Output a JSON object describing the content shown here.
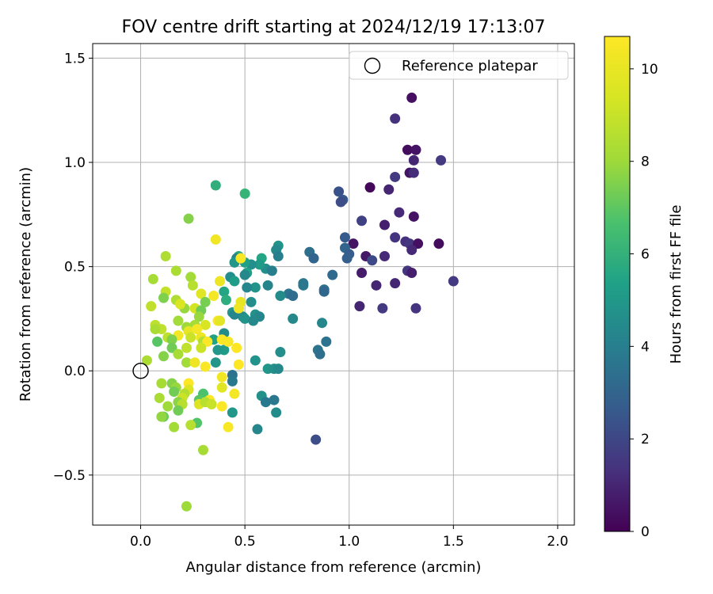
{
  "chart_data": {
    "type": "scatter",
    "title": "FOV centre drift starting at 2024/12/19 17:13:07",
    "xlabel": "Angular distance from reference (arcmin)",
    "ylabel": "Rotation from reference (arcmin)",
    "xlim": [
      -0.23,
      2.08
    ],
    "ylim": [
      -0.74,
      1.57
    ],
    "xticks": [
      0.0,
      0.5,
      1.0,
      1.5,
      2.0
    ],
    "yticks": [
      -0.5,
      0.0,
      0.5,
      1.0,
      1.5
    ],
    "xtick_labels": [
      "0.0",
      "0.5",
      "1.0",
      "1.5",
      "2.0"
    ],
    "ytick_labels": [
      "−0.5",
      "0.0",
      "0.5",
      "1.0",
      "1.5"
    ],
    "grid": true,
    "legend": {
      "position": "top-right",
      "entries": [
        "Reference platepar"
      ]
    },
    "reference_point": {
      "x": 0.0,
      "y": 0.0
    },
    "colorbar": {
      "label": "Hours from first FF file",
      "range": [
        0,
        10.7
      ],
      "ticks": [
        0,
        2,
        4,
        6,
        8,
        10
      ],
      "tick_labels": [
        "0",
        "2",
        "4",
        "6",
        "8",
        "10"
      ],
      "colormap": "viridis"
    },
    "points": [
      {
        "x": 1.3,
        "y": 1.31,
        "h": 0.4
      },
      {
        "x": 1.22,
        "y": 1.21,
        "h": 1.3
      },
      {
        "x": 1.28,
        "y": 1.06,
        "h": 0.3
      },
      {
        "x": 1.32,
        "y": 1.06,
        "h": 0.5
      },
      {
        "x": 1.31,
        "y": 1.01,
        "h": 1.0
      },
      {
        "x": 1.44,
        "y": 1.01,
        "h": 1.6
      },
      {
        "x": 1.29,
        "y": 0.95,
        "h": 0.5
      },
      {
        "x": 1.31,
        "y": 0.95,
        "h": 1.2
      },
      {
        "x": 1.22,
        "y": 0.93,
        "h": 1.6
      },
      {
        "x": 1.1,
        "y": 0.88,
        "h": 0.2
      },
      {
        "x": 1.19,
        "y": 0.87,
        "h": 1.0
      },
      {
        "x": 0.95,
        "y": 0.86,
        "h": 2.4
      },
      {
        "x": 0.97,
        "y": 0.82,
        "h": 2.5
      },
      {
        "x": 0.96,
        "y": 0.81,
        "h": 2.2
      },
      {
        "x": 1.24,
        "y": 0.76,
        "h": 1.1
      },
      {
        "x": 1.31,
        "y": 0.74,
        "h": 0.5
      },
      {
        "x": 1.06,
        "y": 0.72,
        "h": 1.8
      },
      {
        "x": 1.17,
        "y": 0.7,
        "h": 0.8
      },
      {
        "x": 1.22,
        "y": 0.64,
        "h": 1.4
      },
      {
        "x": 0.98,
        "y": 0.64,
        "h": 2.6
      },
      {
        "x": 1.27,
        "y": 0.62,
        "h": 1.3
      },
      {
        "x": 1.02,
        "y": 0.61,
        "h": 0.5
      },
      {
        "x": 1.29,
        "y": 0.61,
        "h": 1.5
      },
      {
        "x": 1.33,
        "y": 0.61,
        "h": 0.4
      },
      {
        "x": 1.43,
        "y": 0.61,
        "h": 0.3
      },
      {
        "x": 0.98,
        "y": 0.59,
        "h": 3.0
      },
      {
        "x": 1.3,
        "y": 0.58,
        "h": 1.1
      },
      {
        "x": 0.81,
        "y": 0.57,
        "h": 3.4
      },
      {
        "x": 1.0,
        "y": 0.56,
        "h": 2.7
      },
      {
        "x": 1.08,
        "y": 0.55,
        "h": 0.6
      },
      {
        "x": 1.17,
        "y": 0.55,
        "h": 1.1
      },
      {
        "x": 0.83,
        "y": 0.54,
        "h": 3.0
      },
      {
        "x": 0.99,
        "y": 0.54,
        "h": 2.8
      },
      {
        "x": 1.11,
        "y": 0.53,
        "h": 2.1
      },
      {
        "x": 1.28,
        "y": 0.48,
        "h": 1.5
      },
      {
        "x": 1.06,
        "y": 0.47,
        "h": 0.7
      },
      {
        "x": 1.3,
        "y": 0.47,
        "h": 0.8
      },
      {
        "x": 0.92,
        "y": 0.46,
        "h": 3.2
      },
      {
        "x": 1.5,
        "y": 0.43,
        "h": 1.6
      },
      {
        "x": 1.22,
        "y": 0.42,
        "h": 1.0
      },
      {
        "x": 1.13,
        "y": 0.41,
        "h": 1.0
      },
      {
        "x": 0.88,
        "y": 0.39,
        "h": 3.4
      },
      {
        "x": 0.88,
        "y": 0.38,
        "h": 3.1
      },
      {
        "x": 1.05,
        "y": 0.31,
        "h": 1.0
      },
      {
        "x": 1.16,
        "y": 0.3,
        "h": 1.6
      },
      {
        "x": 1.32,
        "y": 0.3,
        "h": 1.4
      },
      {
        "x": 0.85,
        "y": 0.1,
        "h": 3.6
      },
      {
        "x": 0.89,
        "y": 0.14,
        "h": 3.5
      },
      {
        "x": 0.86,
        "y": 0.08,
        "h": 3.4
      },
      {
        "x": 0.84,
        "y": -0.33,
        "h": 2.2
      },
      {
        "x": 0.87,
        "y": 0.23,
        "h": 4.3
      },
      {
        "x": 0.73,
        "y": 0.25,
        "h": 4.4
      },
      {
        "x": 0.78,
        "y": 0.41,
        "h": 3.8
      },
      {
        "x": 0.78,
        "y": 0.42,
        "h": 3.7
      },
      {
        "x": 0.71,
        "y": 0.37,
        "h": 3.6
      },
      {
        "x": 0.73,
        "y": 0.36,
        "h": 3.3
      },
      {
        "x": 0.67,
        "y": 0.36,
        "h": 4.5
      },
      {
        "x": 0.61,
        "y": 0.41,
        "h": 4.2
      },
      {
        "x": 0.6,
        "y": 0.49,
        "h": 4.6
      },
      {
        "x": 0.63,
        "y": 0.48,
        "h": 4.0
      },
      {
        "x": 0.66,
        "y": 0.6,
        "h": 4.8
      },
      {
        "x": 0.65,
        "y": 0.58,
        "h": 4.4
      },
      {
        "x": 0.66,
        "y": 0.55,
        "h": 4.0
      },
      {
        "x": 0.58,
        "y": 0.54,
        "h": 5.5
      },
      {
        "x": 0.57,
        "y": 0.51,
        "h": 5.1
      },
      {
        "x": 0.53,
        "y": 0.51,
        "h": 4.6
      },
      {
        "x": 0.5,
        "y": 0.52,
        "h": 5.3
      },
      {
        "x": 0.47,
        "y": 0.55,
        "h": 5.6
      },
      {
        "x": 0.46,
        "y": 0.54,
        "h": 4.2
      },
      {
        "x": 0.45,
        "y": 0.52,
        "h": 4.9
      },
      {
        "x": 0.51,
        "y": 0.47,
        "h": 5.4
      },
      {
        "x": 0.5,
        "y": 0.46,
        "h": 4.4
      },
      {
        "x": 0.43,
        "y": 0.45,
        "h": 4.6
      },
      {
        "x": 0.45,
        "y": 0.43,
        "h": 5.2
      },
      {
        "x": 0.55,
        "y": 0.4,
        "h": 4.8
      },
      {
        "x": 0.51,
        "y": 0.4,
        "h": 4.3
      },
      {
        "x": 0.4,
        "y": 0.38,
        "h": 5.5
      },
      {
        "x": 0.41,
        "y": 0.34,
        "h": 5.8
      },
      {
        "x": 0.53,
        "y": 0.33,
        "h": 4.6
      },
      {
        "x": 0.47,
        "y": 0.3,
        "h": 5.0
      },
      {
        "x": 0.44,
        "y": 0.28,
        "h": 4.9
      },
      {
        "x": 0.45,
        "y": 0.27,
        "h": 4.2
      },
      {
        "x": 0.49,
        "y": 0.26,
        "h": 4.5
      },
      {
        "x": 0.55,
        "y": 0.27,
        "h": 4.7
      },
      {
        "x": 0.5,
        "y": 0.25,
        "h": 4.8
      },
      {
        "x": 0.57,
        "y": 0.26,
        "h": 4.3
      },
      {
        "x": 0.54,
        "y": 0.24,
        "h": 4.4
      },
      {
        "x": 0.4,
        "y": 0.18,
        "h": 4.5
      },
      {
        "x": 0.35,
        "y": 0.15,
        "h": 5.4
      },
      {
        "x": 0.4,
        "y": 0.1,
        "h": 5.1
      },
      {
        "x": 0.37,
        "y": 0.1,
        "h": 5.0
      },
      {
        "x": 0.67,
        "y": 0.09,
        "h": 4.6
      },
      {
        "x": 0.55,
        "y": 0.05,
        "h": 4.8
      },
      {
        "x": 0.61,
        "y": 0.01,
        "h": 4.9
      },
      {
        "x": 0.64,
        "y": 0.01,
        "h": 4.7
      },
      {
        "x": 0.66,
        "y": 0.01,
        "h": 4.4
      },
      {
        "x": 0.44,
        "y": -0.02,
        "h": 3.5
      },
      {
        "x": 0.44,
        "y": -0.05,
        "h": 3.8
      },
      {
        "x": 0.36,
        "y": 0.04,
        "h": 4.9
      },
      {
        "x": 0.58,
        "y": -0.12,
        "h": 4.7
      },
      {
        "x": 0.6,
        "y": -0.15,
        "h": 3.8
      },
      {
        "x": 0.64,
        "y": -0.14,
        "h": 3.7
      },
      {
        "x": 0.65,
        "y": -0.2,
        "h": 4.5
      },
      {
        "x": 0.56,
        "y": -0.28,
        "h": 4.3
      },
      {
        "x": 0.44,
        "y": -0.2,
        "h": 4.9
      },
      {
        "x": 0.36,
        "y": 0.89,
        "h": 5.9
      },
      {
        "x": 0.5,
        "y": 0.85,
        "h": 6.1
      },
      {
        "x": 0.23,
        "y": 0.73,
        "h": 7.6
      },
      {
        "x": 0.36,
        "y": 0.63,
        "h": 10.3
      },
      {
        "x": 0.48,
        "y": 0.54,
        "h": 10.5
      },
      {
        "x": 0.12,
        "y": 0.55,
        "h": 8.4
      },
      {
        "x": 0.17,
        "y": 0.48,
        "h": 8.3
      },
      {
        "x": 0.24,
        "y": 0.45,
        "h": 8.1
      },
      {
        "x": 0.06,
        "y": 0.44,
        "h": 8.2
      },
      {
        "x": 0.25,
        "y": 0.41,
        "h": 8.6
      },
      {
        "x": 0.29,
        "y": 0.37,
        "h": 9.7
      },
      {
        "x": 0.38,
        "y": 0.43,
        "h": 10.1
      },
      {
        "x": 0.12,
        "y": 0.38,
        "h": 8.9
      },
      {
        "x": 0.11,
        "y": 0.35,
        "h": 7.5
      },
      {
        "x": 0.17,
        "y": 0.34,
        "h": 8.4
      },
      {
        "x": 0.21,
        "y": 0.3,
        "h": 7.9
      },
      {
        "x": 0.19,
        "y": 0.32,
        "h": 9.5
      },
      {
        "x": 0.31,
        "y": 0.33,
        "h": 7.4
      },
      {
        "x": 0.35,
        "y": 0.36,
        "h": 10.4
      },
      {
        "x": 0.48,
        "y": 0.33,
        "h": 9.9
      },
      {
        "x": 0.47,
        "y": 0.3,
        "h": 10.2
      },
      {
        "x": 0.05,
        "y": 0.31,
        "h": 8.8
      },
      {
        "x": 0.26,
        "y": 0.3,
        "h": 9.3
      },
      {
        "x": 0.29,
        "y": 0.29,
        "h": 7.3
      },
      {
        "x": 0.28,
        "y": 0.26,
        "h": 7.9
      },
      {
        "x": 0.37,
        "y": 0.24,
        "h": 10.6
      },
      {
        "x": 0.38,
        "y": 0.24,
        "h": 9.8
      },
      {
        "x": 0.18,
        "y": 0.24,
        "h": 8.1
      },
      {
        "x": 0.07,
        "y": 0.22,
        "h": 8.7
      },
      {
        "x": 0.1,
        "y": 0.2,
        "h": 8.8
      },
      {
        "x": 0.07,
        "y": 0.2,
        "h": 8.3
      },
      {
        "x": 0.26,
        "y": 0.22,
        "h": 8.2
      },
      {
        "x": 0.31,
        "y": 0.22,
        "h": 9.4
      },
      {
        "x": 0.22,
        "y": 0.21,
        "h": 8.0
      },
      {
        "x": 0.23,
        "y": 0.19,
        "h": 9.9
      },
      {
        "x": 0.27,
        "y": 0.2,
        "h": 10.4
      },
      {
        "x": 0.18,
        "y": 0.17,
        "h": 10.4
      },
      {
        "x": 0.13,
        "y": 0.16,
        "h": 8.7
      },
      {
        "x": 0.15,
        "y": 0.15,
        "h": 7.5
      },
      {
        "x": 0.24,
        "y": 0.16,
        "h": 9.1
      },
      {
        "x": 0.29,
        "y": 0.16,
        "h": 10.1
      },
      {
        "x": 0.3,
        "y": 0.14,
        "h": 8.4
      },
      {
        "x": 0.32,
        "y": 0.14,
        "h": 10.6
      },
      {
        "x": 0.39,
        "y": 0.15,
        "h": 10.6
      },
      {
        "x": 0.42,
        "y": 0.14,
        "h": 10.5
      },
      {
        "x": 0.08,
        "y": 0.14,
        "h": 6.9
      },
      {
        "x": 0.15,
        "y": 0.11,
        "h": 7.3
      },
      {
        "x": 0.22,
        "y": 0.11,
        "h": 8.8
      },
      {
        "x": 0.29,
        "y": 0.11,
        "h": 9.1
      },
      {
        "x": 0.46,
        "y": 0.11,
        "h": 10.7
      },
      {
        "x": 0.18,
        "y": 0.08,
        "h": 8.2
      },
      {
        "x": 0.11,
        "y": 0.07,
        "h": 7.6
      },
      {
        "x": 0.03,
        "y": 0.05,
        "h": 8.3
      },
      {
        "x": 0.22,
        "y": 0.04,
        "h": 8.1
      },
      {
        "x": 0.26,
        "y": 0.04,
        "h": 10.2
      },
      {
        "x": 0.31,
        "y": 0.02,
        "h": 10.6
      },
      {
        "x": 0.47,
        "y": 0.03,
        "h": 10.8
      },
      {
        "x": 0.39,
        "y": -0.03,
        "h": 10.3
      },
      {
        "x": 0.1,
        "y": -0.06,
        "h": 8.2
      },
      {
        "x": 0.15,
        "y": -0.06,
        "h": 7.6
      },
      {
        "x": 0.23,
        "y": -0.06,
        "h": 10.7
      },
      {
        "x": 0.17,
        "y": -0.08,
        "h": 7.9
      },
      {
        "x": 0.39,
        "y": -0.08,
        "h": 9.7
      },
      {
        "x": 0.16,
        "y": -0.1,
        "h": 7.3
      },
      {
        "x": 0.23,
        "y": -0.09,
        "h": 9.6
      },
      {
        "x": 0.21,
        "y": -0.11,
        "h": 8.5
      },
      {
        "x": 0.3,
        "y": -0.11,
        "h": 6.7
      },
      {
        "x": 0.45,
        "y": -0.11,
        "h": 10.4
      },
      {
        "x": 0.09,
        "y": -0.13,
        "h": 8.3
      },
      {
        "x": 0.2,
        "y": -0.13,
        "h": 9.1
      },
      {
        "x": 0.18,
        "y": -0.15,
        "h": 7.7
      },
      {
        "x": 0.28,
        "y": -0.14,
        "h": 6.9
      },
      {
        "x": 0.28,
        "y": -0.16,
        "h": 9.6
      },
      {
        "x": 0.33,
        "y": -0.14,
        "h": 10.6
      },
      {
        "x": 0.31,
        "y": -0.15,
        "h": 8.6
      },
      {
        "x": 0.34,
        "y": -0.16,
        "h": 9.0
      },
      {
        "x": 0.13,
        "y": -0.17,
        "h": 8.0
      },
      {
        "x": 0.2,
        "y": -0.16,
        "h": 8.6
      },
      {
        "x": 0.39,
        "y": -0.17,
        "h": 10.6
      },
      {
        "x": 0.18,
        "y": -0.19,
        "h": 7.3
      },
      {
        "x": 0.11,
        "y": -0.22,
        "h": 7.2
      },
      {
        "x": 0.1,
        "y": -0.22,
        "h": 7.8
      },
      {
        "x": 0.27,
        "y": -0.25,
        "h": 6.8
      },
      {
        "x": 0.24,
        "y": -0.26,
        "h": 8.6
      },
      {
        "x": 0.16,
        "y": -0.27,
        "h": 8.1
      },
      {
        "x": 0.42,
        "y": -0.27,
        "h": 10.5
      },
      {
        "x": 0.3,
        "y": -0.38,
        "h": 8.2
      },
      {
        "x": 0.22,
        "y": -0.65,
        "h": 8.0
      }
    ]
  }
}
